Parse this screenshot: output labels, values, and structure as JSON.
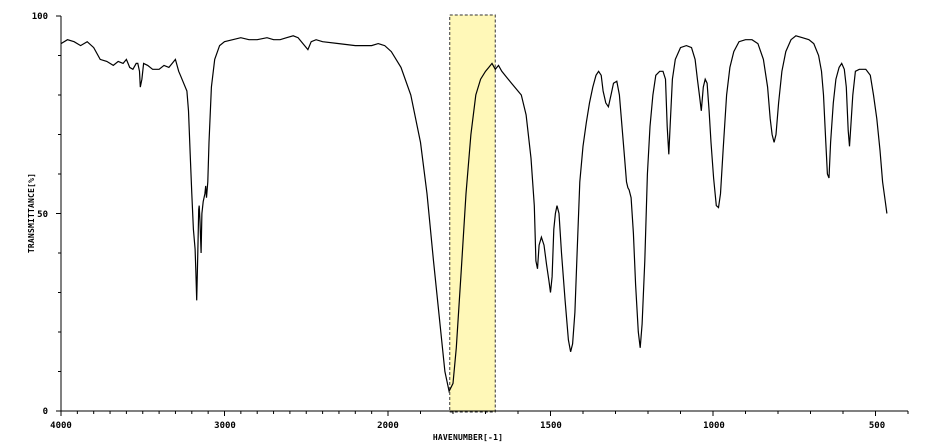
{
  "chart_data": {
    "type": "line",
    "xlabel": "HAVENUMBER[-1]",
    "ylabel": "TRANSMITTANCE[%]",
    "xlim": [
      4000,
      400
    ],
    "ylim": [
      0,
      100
    ],
    "x_ticks": [
      4000,
      3000,
      2000,
      1500,
      1000,
      500
    ],
    "x_tick_labels": [
      "4000",
      "3000",
      "2000",
      "1500",
      "1000",
      "500"
    ],
    "y_ticks": [
      0,
      50,
      100
    ],
    "y_tick_labels": [
      "0",
      "50",
      "100"
    ],
    "grid": false,
    "highlight": {
      "x_range": [
        1810,
        1670
      ],
      "color": "#fff8b8",
      "border": "#333333"
    },
    "series": [
      {
        "line_color": "#000000",
        "points": [
          [
            4000,
            93
          ],
          [
            3960,
            94
          ],
          [
            3920,
            93.5
          ],
          [
            3880,
            92.5
          ],
          [
            3840,
            93.5
          ],
          [
            3800,
            92
          ],
          [
            3760,
            89
          ],
          [
            3720,
            88.5
          ],
          [
            3680,
            87.5
          ],
          [
            3650,
            88.5
          ],
          [
            3620,
            88
          ],
          [
            3600,
            89
          ],
          [
            3580,
            87
          ],
          [
            3560,
            86.5
          ],
          [
            3540,
            88
          ],
          [
            3530,
            88
          ],
          [
            3520,
            86
          ],
          [
            3515,
            82
          ],
          [
            3505,
            84
          ],
          [
            3495,
            88
          ],
          [
            3470,
            87.5
          ],
          [
            3440,
            86.5
          ],
          [
            3400,
            86.5
          ],
          [
            3370,
            87.5
          ],
          [
            3340,
            87
          ],
          [
            3320,
            88
          ],
          [
            3300,
            89
          ],
          [
            3280,
            86
          ],
          [
            3270,
            85
          ],
          [
            3230,
            81
          ],
          [
            3220,
            76
          ],
          [
            3210,
            65
          ],
          [
            3200,
            55
          ],
          [
            3190,
            46
          ],
          [
            3180,
            41
          ],
          [
            3175,
            35
          ],
          [
            3170,
            28
          ],
          [
            3163,
            40
          ],
          [
            3158,
            51
          ],
          [
            3155,
            52
          ],
          [
            3150,
            48
          ],
          [
            3143,
            40
          ],
          [
            3138,
            50
          ],
          [
            3130,
            53
          ],
          [
            3120,
            55
          ],
          [
            3115,
            57
          ],
          [
            3110,
            54
          ],
          [
            3102,
            58
          ],
          [
            3095,
            68
          ],
          [
            3080,
            82
          ],
          [
            3060,
            89
          ],
          [
            3030,
            92.5
          ],
          [
            3000,
            93.5
          ],
          [
            2950,
            94
          ],
          [
            2900,
            94.5
          ],
          [
            2850,
            94
          ],
          [
            2800,
            94
          ],
          [
            2740,
            94.5
          ],
          [
            2700,
            94
          ],
          [
            2660,
            94
          ],
          [
            2620,
            94.5
          ],
          [
            2580,
            95
          ],
          [
            2550,
            94.5
          ],
          [
            2510,
            92.5
          ],
          [
            2490,
            91.5
          ],
          [
            2470,
            93.5
          ],
          [
            2440,
            94
          ],
          [
            2400,
            93.5
          ],
          [
            2300,
            93
          ],
          [
            2200,
            92.5
          ],
          [
            2100,
            92.5
          ],
          [
            2060,
            93
          ],
          [
            2020,
            92.5
          ],
          [
            1990,
            91
          ],
          [
            1960,
            87
          ],
          [
            1930,
            80
          ],
          [
            1900,
            68
          ],
          [
            1880,
            55
          ],
          [
            1860,
            38
          ],
          [
            1840,
            22
          ],
          [
            1825,
            10
          ],
          [
            1812,
            5
          ],
          [
            1800,
            7
          ],
          [
            1790,
            16
          ],
          [
            1775,
            35
          ],
          [
            1760,
            55
          ],
          [
            1745,
            70
          ],
          [
            1730,
            80
          ],
          [
            1715,
            84
          ],
          [
            1700,
            86
          ],
          [
            1690,
            87
          ],
          [
            1680,
            88
          ],
          [
            1670,
            86.5
          ],
          [
            1660,
            87.5
          ],
          [
            1650,
            86
          ],
          [
            1635,
            84.5
          ],
          [
            1620,
            83
          ],
          [
            1605,
            81.5
          ],
          [
            1590,
            80
          ],
          [
            1575,
            75
          ],
          [
            1560,
            64
          ],
          [
            1550,
            52
          ],
          [
            1545,
            38
          ],
          [
            1540,
            36
          ],
          [
            1535,
            42
          ],
          [
            1528,
            44
          ],
          [
            1520,
            42
          ],
          [
            1512,
            37
          ],
          [
            1505,
            33
          ],
          [
            1500,
            30
          ],
          [
            1495,
            34
          ],
          [
            1490,
            46
          ],
          [
            1485,
            50
          ],
          [
            1480,
            52
          ],
          [
            1474,
            50
          ],
          [
            1466,
            40
          ],
          [
            1455,
            28
          ],
          [
            1445,
            18
          ],
          [
            1438,
            15
          ],
          [
            1432,
            17
          ],
          [
            1425,
            25
          ],
          [
            1418,
            40
          ],
          [
            1410,
            58
          ],
          [
            1400,
            67
          ],
          [
            1390,
            73
          ],
          [
            1380,
            78
          ],
          [
            1370,
            82
          ],
          [
            1360,
            85
          ],
          [
            1352,
            86
          ],
          [
            1344,
            85
          ],
          [
            1338,
            81
          ],
          [
            1330,
            78
          ],
          [
            1322,
            77
          ],
          [
            1314,
            80
          ],
          [
            1306,
            83
          ],
          [
            1296,
            83.5
          ],
          [
            1288,
            80
          ],
          [
            1280,
            72
          ],
          [
            1272,
            64
          ],
          [
            1266,
            58
          ],
          [
            1262,
            56.5
          ],
          [
            1258,
            56
          ],
          [
            1252,
            54
          ],
          [
            1245,
            45
          ],
          [
            1238,
            32
          ],
          [
            1230,
            20
          ],
          [
            1224,
            16
          ],
          [
            1218,
            22
          ],
          [
            1210,
            38
          ],
          [
            1202,
            60
          ],
          [
            1194,
            72
          ],
          [
            1185,
            80
          ],
          [
            1176,
            85
          ],
          [
            1164,
            86
          ],
          [
            1154,
            86
          ],
          [
            1146,
            84
          ],
          [
            1141,
            72
          ],
          [
            1136,
            65
          ],
          [
            1132,
            72
          ],
          [
            1125,
            84
          ],
          [
            1116,
            89
          ],
          [
            1100,
            92
          ],
          [
            1082,
            92.5
          ],
          [
            1066,
            92
          ],
          [
            1055,
            89
          ],
          [
            1048,
            84
          ],
          [
            1042,
            80
          ],
          [
            1036,
            76
          ],
          [
            1030,
            82
          ],
          [
            1024,
            84
          ],
          [
            1018,
            83
          ],
          [
            1012,
            76
          ],
          [
            1006,
            68
          ],
          [
            998,
            59
          ],
          [
            990,
            52
          ],
          [
            983,
            51.5
          ],
          [
            977,
            55
          ],
          [
            969,
            66
          ],
          [
            958,
            80
          ],
          [
            948,
            87
          ],
          [
            936,
            91
          ],
          [
            920,
            93.5
          ],
          [
            900,
            94
          ],
          [
            880,
            94
          ],
          [
            862,
            93
          ],
          [
            845,
            89
          ],
          [
            832,
            82
          ],
          [
            824,
            74
          ],
          [
            818,
            70
          ],
          [
            812,
            68
          ],
          [
            806,
            70
          ],
          [
            798,
            78
          ],
          [
            788,
            86
          ],
          [
            776,
            91
          ],
          [
            760,
            94
          ],
          [
            745,
            95
          ],
          [
            725,
            94.5
          ],
          [
            705,
            94
          ],
          [
            690,
            93
          ],
          [
            675,
            90
          ],
          [
            666,
            86
          ],
          [
            660,
            80
          ],
          [
            653,
            68
          ],
          [
            648,
            60
          ],
          [
            643,
            59
          ],
          [
            638,
            68
          ],
          [
            630,
            78
          ],
          [
            622,
            84
          ],
          [
            612,
            87
          ],
          [
            604,
            88
          ],
          [
            596,
            86.5
          ],
          [
            590,
            82
          ],
          [
            584,
            71
          ],
          [
            580,
            67
          ],
          [
            576,
            72
          ],
          [
            570,
            80
          ],
          [
            562,
            86
          ],
          [
            550,
            86.5
          ],
          [
            530,
            86.5
          ],
          [
            516,
            85
          ],
          [
            506,
            80
          ],
          [
            496,
            74
          ],
          [
            486,
            66
          ],
          [
            478,
            58
          ],
          [
            470,
            53
          ],
          [
            465,
            50
          ]
        ]
      }
    ]
  }
}
